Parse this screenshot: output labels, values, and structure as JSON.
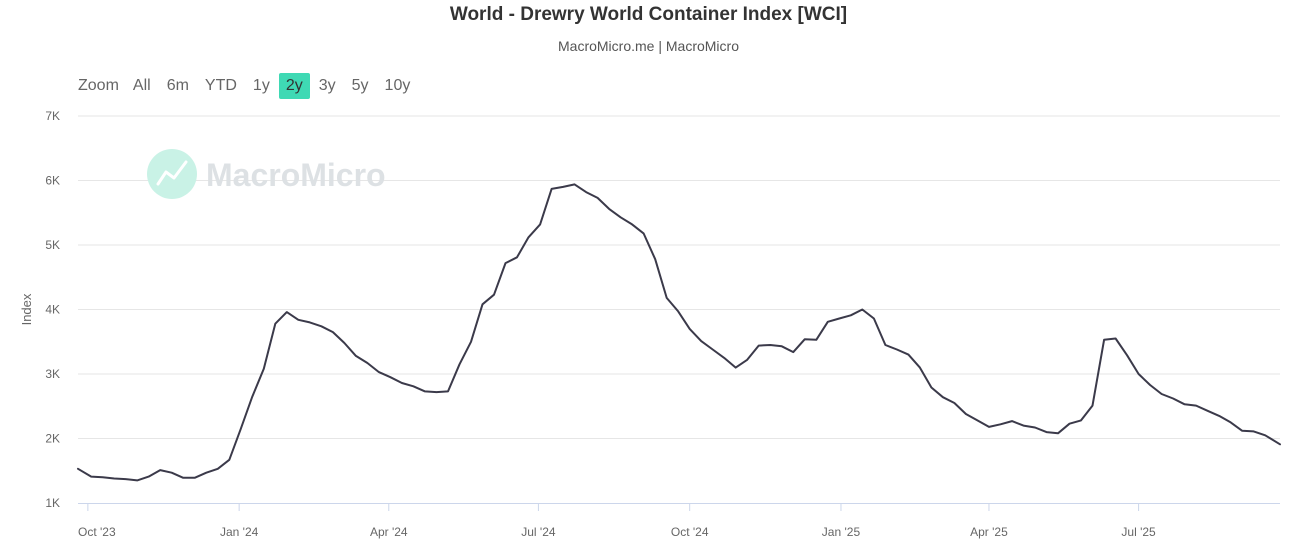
{
  "header": {
    "title": "World - Drewry World Container Index [WCI]",
    "subtitle": "MacroMicro.me | MacroMicro"
  },
  "zoom": {
    "label": "Zoom",
    "buttons": [
      "All",
      "6m",
      "YTD",
      "1y",
      "2y",
      "3y",
      "5y",
      "10y"
    ],
    "active": "2y"
  },
  "watermark": {
    "text": "MacroMicro"
  },
  "colors": {
    "line": "#3b3a4a",
    "active_button": "#3fd9b4",
    "grid": "#e6e6e6"
  },
  "chart_data": {
    "type": "line",
    "ylabel": "Index",
    "ylim": [
      1000,
      7000
    ],
    "yticks": [
      1000,
      2000,
      3000,
      4000,
      5000,
      6000,
      7000
    ],
    "ytick_labels": [
      "1K",
      "2K",
      "3K",
      "4K",
      "5K",
      "6K",
      "7K"
    ],
    "xlim": [
      "2023-09-25",
      "2025-09-25"
    ],
    "xticks": [
      "2023-10-01",
      "2024-01-01",
      "2024-04-01",
      "2024-07-01",
      "2024-10-01",
      "2025-01-01",
      "2025-04-01",
      "2025-07-01"
    ],
    "xtick_labels": [
      "Oct '23",
      "Jan '24",
      "Apr '24",
      "Jul '24",
      "Oct '24",
      "Jan '25",
      "Apr '25",
      "Jul '25"
    ],
    "grid": true,
    "series": [
      {
        "x": [
          "2023-09-25",
          "2023-10-03",
          "2023-10-10",
          "2023-10-17",
          "2023-10-24",
          "2023-10-31",
          "2023-11-07",
          "2023-11-14",
          "2023-11-21",
          "2023-11-28",
          "2023-12-05",
          "2023-12-12",
          "2023-12-19",
          "2023-12-26",
          "2024-01-02",
          "2024-01-09",
          "2024-01-16",
          "2024-01-23",
          "2024-01-30",
          "2024-02-06",
          "2024-02-13",
          "2024-02-20",
          "2024-02-27",
          "2024-03-05",
          "2024-03-12",
          "2024-03-19",
          "2024-03-26",
          "2024-04-02",
          "2024-04-09",
          "2024-04-16",
          "2024-04-23",
          "2024-04-30",
          "2024-05-07",
          "2024-05-14",
          "2024-05-21",
          "2024-05-28",
          "2024-06-04",
          "2024-06-11",
          "2024-06-18",
          "2024-06-25",
          "2024-07-02",
          "2024-07-09",
          "2024-07-16",
          "2024-07-23",
          "2024-07-30",
          "2024-08-06",
          "2024-08-13",
          "2024-08-20",
          "2024-08-27",
          "2024-09-03",
          "2024-09-10",
          "2024-09-17",
          "2024-09-24",
          "2024-10-01",
          "2024-10-08",
          "2024-10-15",
          "2024-10-22",
          "2024-10-29",
          "2024-11-05",
          "2024-11-12",
          "2024-11-19",
          "2024-11-26",
          "2024-12-03",
          "2024-12-10",
          "2024-12-17",
          "2024-12-24",
          "2024-12-31",
          "2025-01-07",
          "2025-01-14",
          "2025-01-21",
          "2025-01-28",
          "2025-02-04",
          "2025-02-11",
          "2025-02-18",
          "2025-02-25",
          "2025-03-04",
          "2025-03-11",
          "2025-03-18",
          "2025-03-25",
          "2025-04-01",
          "2025-04-08",
          "2025-04-15",
          "2025-04-22",
          "2025-04-29",
          "2025-05-06",
          "2025-05-13",
          "2025-05-20",
          "2025-05-27",
          "2025-06-03",
          "2025-06-10",
          "2025-06-17",
          "2025-06-24",
          "2025-07-01",
          "2025-07-08",
          "2025-07-15",
          "2025-07-22",
          "2025-07-29",
          "2025-08-05",
          "2025-08-12",
          "2025-08-19",
          "2025-08-26",
          "2025-09-02",
          "2025-09-09",
          "2025-09-16",
          "2025-09-25"
        ],
        "values": [
          1530,
          1410,
          1400,
          1380,
          1370,
          1350,
          1410,
          1510,
          1470,
          1390,
          1390,
          1470,
          1530,
          1670,
          2150,
          2650,
          3080,
          3780,
          3960,
          3840,
          3800,
          3740,
          3650,
          3480,
          3280,
          3170,
          3030,
          2950,
          2860,
          2810,
          2730,
          2720,
          2730,
          3150,
          3500,
          4080,
          4230,
          4720,
          4810,
          5120,
          5320,
          5870,
          5900,
          5940,
          5820,
          5730,
          5560,
          5430,
          5320,
          5180,
          4780,
          4180,
          3970,
          3700,
          3510,
          3380,
          3250,
          3100,
          3220,
          3440,
          3450,
          3430,
          3340,
          3540,
          3530,
          3810,
          3860,
          3910,
          4000,
          3860,
          3450,
          3380,
          3300,
          3100,
          2790,
          2640,
          2550,
          2380,
          2280,
          2180,
          2220,
          2270,
          2200,
          2170,
          2100,
          2080,
          2230,
          2280,
          2510,
          3530,
          3550,
          3290,
          3000,
          2830,
          2690,
          2620,
          2530,
          2510,
          2430,
          2350,
          2250,
          2120,
          2110,
          2050,
          1910
        ]
      }
    ]
  }
}
